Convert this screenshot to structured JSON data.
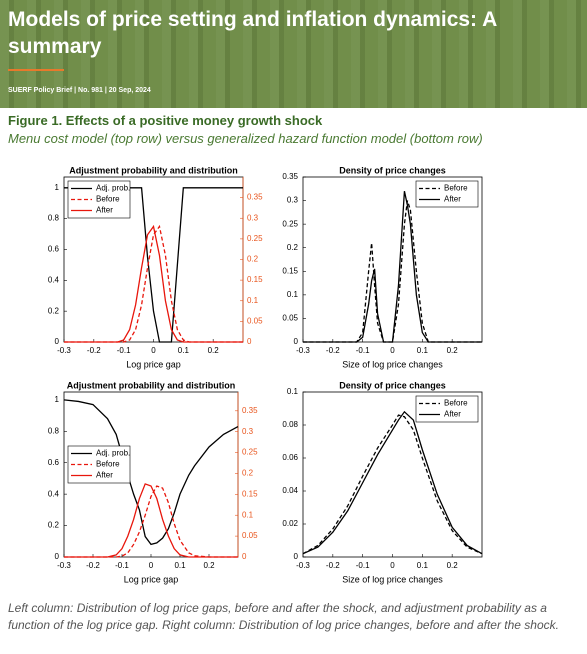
{
  "header": {
    "title": "Models of price setting and inflation dynamics: A summary",
    "meta": "SUERF Policy Brief | No. 981 | 20 Sep, 2024"
  },
  "figure": {
    "title": "Figure 1. Effects of a positive money growth shock",
    "subtitle": "Menu cost model (top row) versus generalized hazard function model (bottom row)"
  },
  "caption": "Left column: Distribution of log price gaps, before and after the shock, and adjustment probability as a function of the log price gap. Right column: Distribution of log price changes, before and after the shock.",
  "chart_data": [
    {
      "type": "line",
      "title": "Adjustment probability and distribution",
      "x_label": "Log price gap",
      "xlim": [
        -0.3,
        0.3
      ],
      "xticks": [
        -0.3,
        -0.2,
        -0.1,
        0,
        0.1,
        0.2
      ],
      "ylim": [
        0,
        1.07
      ],
      "yticks": [
        0,
        0.2,
        0.4,
        0.6,
        0.8,
        1
      ],
      "y2lim": [
        0,
        0.4
      ],
      "y2ticks": [
        0,
        0.05,
        0.1,
        0.15,
        0.2,
        0.25,
        0.3,
        0.35
      ],
      "y2color": "#e8541c",
      "legend": "upper left",
      "x": [
        -0.3,
        -0.12,
        -0.1,
        -0.08,
        -0.06,
        -0.04,
        -0.02,
        0,
        0.02,
        0.04,
        0.06,
        0.08,
        0.1,
        0.12,
        0.3
      ],
      "series": [
        {
          "name": "Adj. prob.",
          "color": "#000000",
          "style": "solid",
          "values": [
            1,
            1,
            1,
            1,
            1,
            1,
            0.55,
            0.2,
            0,
            0,
            0,
            0.5,
            1,
            1,
            1
          ]
        },
        {
          "name": "Before",
          "color": "#e8160c",
          "style": "dashed",
          "axis": "y2",
          "values": [
            0,
            0,
            0,
            0.005,
            0.03,
            0.09,
            0.18,
            0.26,
            0.28,
            0.21,
            0.1,
            0.03,
            0.005,
            0,
            0
          ]
        },
        {
          "name": "After",
          "color": "#e8160c",
          "style": "solid",
          "axis": "y2",
          "values": [
            0,
            0,
            0.005,
            0.03,
            0.09,
            0.18,
            0.26,
            0.28,
            0.21,
            0.1,
            0.03,
            0.005,
            0,
            0,
            0
          ]
        }
      ]
    },
    {
      "type": "line",
      "title": "Density of price changes",
      "x_label": "Size of log price changes",
      "xlim": [
        -0.3,
        0.3
      ],
      "xticks": [
        -0.3,
        -0.2,
        -0.1,
        0,
        0.1,
        0.2
      ],
      "ylim": [
        0,
        0.35
      ],
      "yticks": [
        0,
        0.05,
        0.1,
        0.15,
        0.2,
        0.25,
        0.3,
        0.35
      ],
      "legend": "upper right",
      "x": [
        -0.3,
        -0.12,
        -0.1,
        -0.08,
        -0.07,
        -0.06,
        -0.05,
        -0.03,
        0,
        0.02,
        0.04,
        0.05,
        0.06,
        0.08,
        0.1,
        0.12,
        0.3
      ],
      "series": [
        {
          "name": "Before",
          "color": "#000000",
          "style": "dashed",
          "values": [
            0,
            0,
            0.02,
            0.15,
            0.21,
            0.12,
            0.04,
            0,
            0,
            0.08,
            0.25,
            0.3,
            0.28,
            0.15,
            0.04,
            0,
            0
          ]
        },
        {
          "name": "After",
          "color": "#000000",
          "style": "solid",
          "values": [
            0,
            0,
            0.01,
            0.08,
            0.13,
            0.155,
            0.06,
            0,
            0,
            0.12,
            0.32,
            0.29,
            0.25,
            0.1,
            0.02,
            0,
            0
          ]
        }
      ]
    },
    {
      "type": "line",
      "title": "Adjustment probability and distribution",
      "x_label": "Log price gap",
      "xlim": [
        -0.3,
        0.3
      ],
      "xticks": [
        -0.3,
        -0.2,
        -0.1,
        0,
        0.1,
        0.2
      ],
      "ylim": [
        0,
        1.05
      ],
      "yticks": [
        0,
        0.2,
        0.4,
        0.6,
        0.8,
        1
      ],
      "y2lim": [
        0,
        0.395
      ],
      "y2ticks": [
        0,
        0.05,
        0.1,
        0.15,
        0.2,
        0.25,
        0.3,
        0.35
      ],
      "y2color": "#e8541c",
      "legend": "mid left",
      "x": [
        -0.3,
        -0.25,
        -0.2,
        -0.15,
        -0.12,
        -0.1,
        -0.08,
        -0.06,
        -0.04,
        -0.02,
        0,
        0.02,
        0.04,
        0.06,
        0.08,
        0.1,
        0.13,
        0.15,
        0.2,
        0.25,
        0.3
      ],
      "series": [
        {
          "name": "Adj. prob.",
          "color": "#000000",
          "style": "solid",
          "values": [
            1,
            0.99,
            0.97,
            0.88,
            0.78,
            0.65,
            0.52,
            0.4,
            0.3,
            0.13,
            0.08,
            0.09,
            0.12,
            0.18,
            0.28,
            0.4,
            0.52,
            0.58,
            0.7,
            0.78,
            0.83
          ]
        },
        {
          "name": "Before",
          "color": "#e8160c",
          "style": "dashed",
          "axis": "y2",
          "values": [
            0,
            0,
            0,
            0,
            0,
            0.002,
            0.01,
            0.03,
            0.06,
            0.1,
            0.145,
            0.17,
            0.165,
            0.13,
            0.08,
            0.04,
            0.01,
            0.003,
            0,
            0,
            0
          ]
        },
        {
          "name": "After",
          "color": "#e8160c",
          "style": "solid",
          "axis": "y2",
          "values": [
            0,
            0,
            0,
            0,
            0.005,
            0.02,
            0.05,
            0.09,
            0.14,
            0.175,
            0.17,
            0.14,
            0.09,
            0.05,
            0.02,
            0.005,
            0,
            0,
            0,
            0,
            0
          ]
        }
      ]
    },
    {
      "type": "line",
      "title": "Density of price changes",
      "x_label": "Size of log price changes",
      "xlim": [
        -0.3,
        0.3
      ],
      "xticks": [
        -0.3,
        -0.2,
        -0.1,
        0,
        0.1,
        0.2
      ],
      "ylim": [
        0,
        0.1
      ],
      "yticks": [
        0,
        0.02,
        0.04,
        0.06,
        0.08,
        0.1
      ],
      "legend": "upper right",
      "x": [
        -0.3,
        -0.25,
        -0.2,
        -0.15,
        -0.1,
        -0.05,
        0,
        0.02,
        0.04,
        0.07,
        0.1,
        0.15,
        0.2,
        0.25,
        0.3
      ],
      "series": [
        {
          "name": "Before",
          "color": "#000000",
          "style": "dashed",
          "values": [
            0.002,
            0.007,
            0.017,
            0.031,
            0.049,
            0.066,
            0.08,
            0.086,
            0.085,
            0.077,
            0.06,
            0.034,
            0.016,
            0.006,
            0.002
          ]
        },
        {
          "name": "After",
          "color": "#000000",
          "style": "solid",
          "values": [
            0.002,
            0.006,
            0.015,
            0.028,
            0.045,
            0.062,
            0.077,
            0.083,
            0.088,
            0.083,
            0.065,
            0.038,
            0.018,
            0.007,
            0.002
          ]
        }
      ]
    }
  ]
}
